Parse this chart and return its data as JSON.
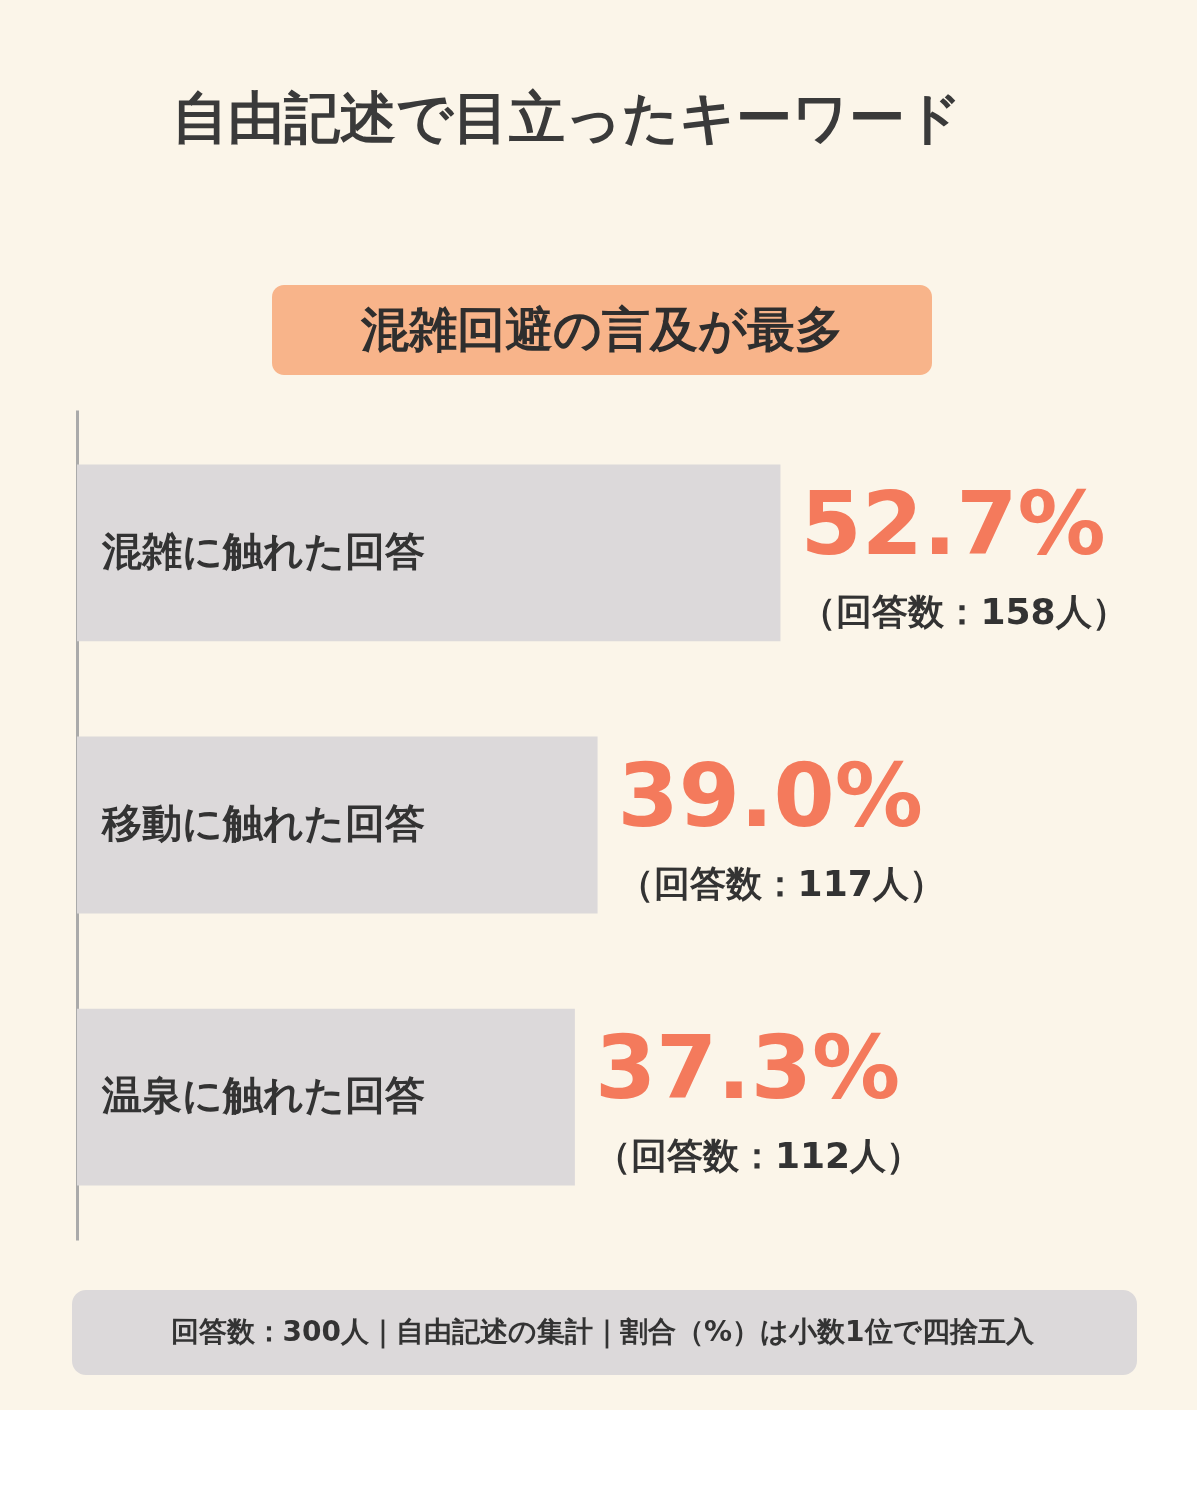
{
  "chart_data": {
    "type": "bar",
    "orientation": "horizontal",
    "title": "自由記述で目立ったキーワード",
    "subtitle": "混雑回避の言及が最多",
    "categories": [
      "混雑に触れた回答",
      "移動に触れた回答",
      "温泉に触れた回答"
    ],
    "values": [
      52.7,
      39.0,
      37.3
    ],
    "color": "#dcd9da",
    "value_labels": [
      "52.7%",
      "39.0%",
      "37.3%"
    ],
    "annotations": [
      {
        "text": "（回答数：158人）",
        "x": 52.7,
        "y": "混雑に触れた回答"
      },
      {
        "text": "（回答数：117人）",
        "x": 39.0,
        "y": "移動に触れた回答"
      },
      {
        "text": "（回答数：112人）",
        "x": 37.3,
        "y": "温泉に触れた回答"
      },
      "回答数：300人｜自由記述の集計｜割合（%）は小数1位で四捨五入"
    ],
    "grid": false
  }
}
